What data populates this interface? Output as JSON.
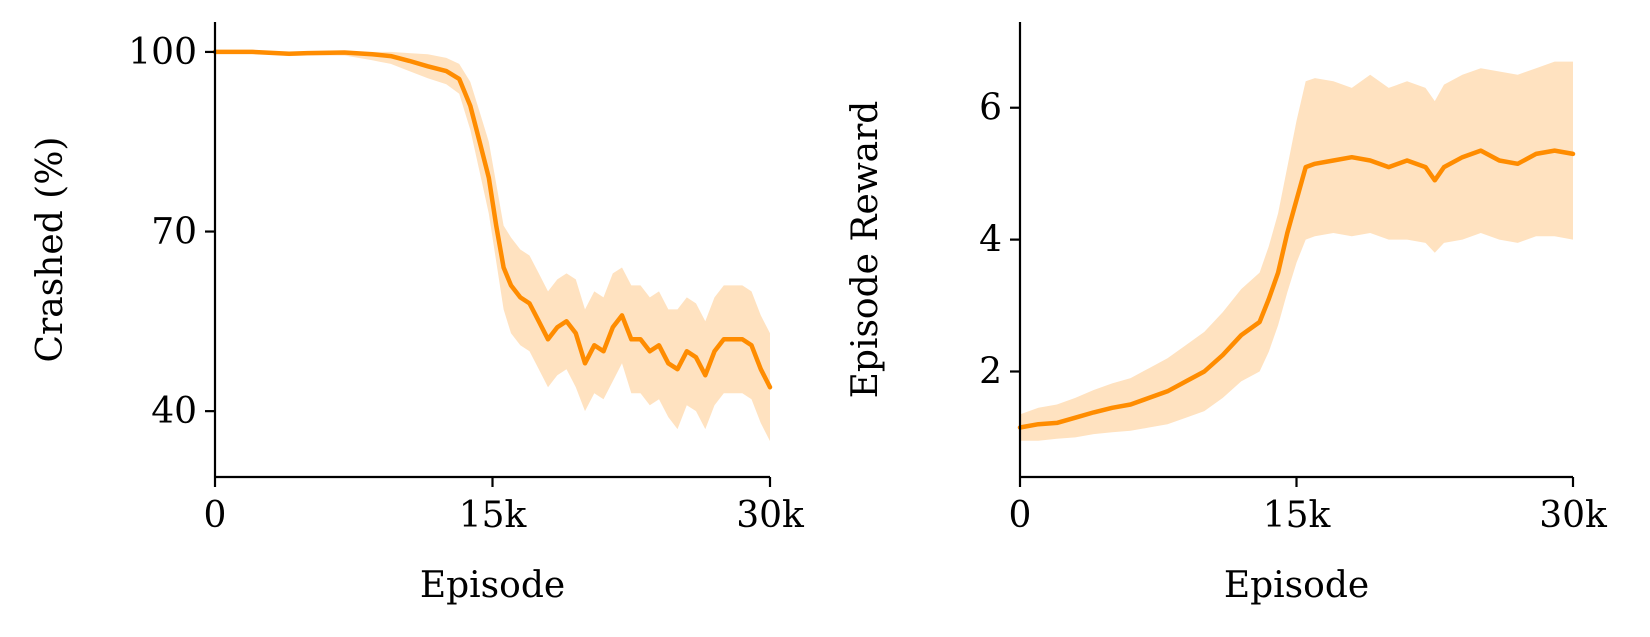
{
  "chart_data": [
    {
      "type": "line",
      "xlabel": "Episode",
      "ylabel": "Crashed (%)",
      "xlim": [
        0,
        30000
      ],
      "ylim": [
        29,
        105
      ],
      "xticks": [
        0,
        15000,
        30000
      ],
      "xtick_labels": [
        "0",
        "15k",
        "30k"
      ],
      "yticks": [
        40,
        70,
        100
      ],
      "ytick_labels": [
        "40",
        "70",
        "100"
      ],
      "grid": false,
      "line_color": "#ff8c00",
      "band_color": "#ffe2c0",
      "series": [
        {
          "x": [
            0,
            2000,
            4000,
            5000,
            7000,
            8500,
            9500,
            10500,
            11500,
            12500,
            13200,
            13800,
            14300,
            14800,
            15200,
            15600,
            16000,
            16500,
            17000,
            17500,
            18000,
            18500,
            19000,
            19500,
            20000,
            20500,
            21000,
            21500,
            22000,
            22500,
            23000,
            23500,
            24000,
            24500,
            25000,
            25500,
            26000,
            26500,
            27000,
            27500,
            28000,
            28500,
            29000,
            29500,
            30000
          ],
          "y": [
            100,
            100,
            99.7,
            99.8,
            99.9,
            99.6,
            99.3,
            98.5,
            97.6,
            96.8,
            95.5,
            91,
            85,
            79,
            71,
            64,
            61,
            59,
            58,
            55,
            52,
            54,
            55,
            53,
            48,
            51,
            50,
            54,
            56,
            52,
            52,
            50,
            51,
            48,
            47,
            50,
            49,
            46,
            50,
            52,
            52,
            52,
            51,
            47,
            44
          ],
          "lower": [
            100,
            100,
            99.3,
            99.4,
            99.4,
            98.6,
            98,
            96.8,
            95.6,
            94.6,
            93,
            87,
            80,
            73,
            65,
            57,
            53,
            51,
            50,
            47,
            44,
            46,
            47,
            44,
            40,
            43,
            42,
            45,
            48,
            43,
            43,
            41,
            42,
            39,
            37,
            41,
            40,
            37,
            41,
            43,
            43,
            43,
            42,
            38,
            35
          ],
          "upper": [
            100,
            100,
            100,
            100,
            100,
            100,
            100,
            99.8,
            99.6,
            99,
            98,
            95,
            90,
            85,
            78,
            71,
            69,
            67,
            66,
            63,
            60,
            62,
            63,
            62,
            57,
            60,
            59,
            63,
            64,
            61,
            61,
            59,
            60,
            57,
            57,
            59,
            58,
            55,
            59,
            61,
            61,
            61,
            60,
            56,
            53
          ]
        }
      ]
    },
    {
      "type": "line",
      "xlabel": "Episode",
      "ylabel": "Episode Reward",
      "xlim": [
        0,
        30000
      ],
      "ylim": [
        0.4,
        7.3
      ],
      "xticks": [
        0,
        15000,
        30000
      ],
      "xtick_labels": [
        "0",
        "15k",
        "30k"
      ],
      "yticks": [
        2,
        4,
        6
      ],
      "ytick_labels": [
        "2",
        "4",
        "6"
      ],
      "grid": false,
      "line_color": "#ff8c00",
      "band_color": "#ffe2c0",
      "series": [
        {
          "x": [
            0,
            1000,
            2000,
            3000,
            4000,
            5000,
            6000,
            7000,
            8000,
            9000,
            10000,
            11000,
            12000,
            13000,
            13500,
            14000,
            14500,
            15000,
            15500,
            16000,
            17000,
            18000,
            19000,
            20000,
            21000,
            22000,
            22500,
            23000,
            24000,
            25000,
            26000,
            27000,
            28000,
            29000,
            30000
          ],
          "y": [
            1.15,
            1.2,
            1.22,
            1.3,
            1.38,
            1.45,
            1.5,
            1.6,
            1.7,
            1.85,
            2.0,
            2.25,
            2.55,
            2.75,
            3.1,
            3.5,
            4.1,
            4.6,
            5.1,
            5.15,
            5.2,
            5.25,
            5.2,
            5.1,
            5.2,
            5.1,
            4.9,
            5.1,
            5.25,
            5.35,
            5.2,
            5.15,
            5.3,
            5.35,
            5.3
          ],
          "lower": [
            0.95,
            0.95,
            0.98,
            1.0,
            1.05,
            1.08,
            1.1,
            1.15,
            1.2,
            1.3,
            1.4,
            1.6,
            1.85,
            2.0,
            2.3,
            2.7,
            3.2,
            3.65,
            4.0,
            4.05,
            4.1,
            4.05,
            4.1,
            4.0,
            4.0,
            3.95,
            3.8,
            3.95,
            4.0,
            4.1,
            4.0,
            3.95,
            4.05,
            4.05,
            4.0
          ],
          "upper": [
            1.35,
            1.45,
            1.5,
            1.6,
            1.72,
            1.82,
            1.9,
            2.05,
            2.2,
            2.4,
            2.6,
            2.9,
            3.25,
            3.5,
            3.9,
            4.4,
            5.1,
            5.8,
            6.4,
            6.45,
            6.4,
            6.3,
            6.5,
            6.3,
            6.4,
            6.3,
            6.1,
            6.35,
            6.5,
            6.6,
            6.55,
            6.5,
            6.6,
            6.7,
            6.7
          ]
        }
      ]
    }
  ]
}
